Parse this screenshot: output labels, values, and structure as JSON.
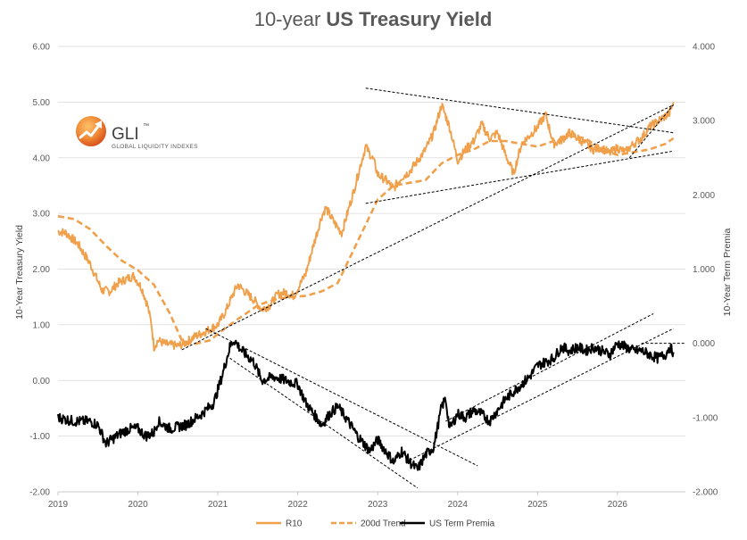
{
  "chart_data": {
    "type": "line",
    "title_light": "10-year ",
    "title_bold": "US Treasury Yield",
    "ylabel_left": "10-Year Treasury Yield",
    "ylabel_right": "10-Year Term Premia",
    "ylim_left": [
      -2,
      6
    ],
    "ylim_right": [
      -2,
      4
    ],
    "left_ticks": [
      "-2.00",
      "-1.00",
      "0.00",
      "1.00",
      "2.00",
      "3.00",
      "4.00",
      "5.00",
      "6.00"
    ],
    "left_tick_values": [
      -2,
      -1,
      0,
      1,
      2,
      3,
      4,
      5,
      6
    ],
    "right_ticks": [
      "-2.000",
      "-1.000",
      "0.000",
      "1.000",
      "2.000",
      "3.000",
      "4.000"
    ],
    "right_tick_values": [
      -2,
      -1,
      0,
      1,
      2,
      3,
      4
    ],
    "xlim": [
      2019,
      2026.85
    ],
    "x_ticks": [
      "2019",
      "2020",
      "2021",
      "2022",
      "2023",
      "2024",
      "2025",
      "2026"
    ],
    "x_tick_values": [
      2019,
      2020,
      2021,
      2022,
      2023,
      2024,
      2025,
      2026
    ],
    "grid": "horizontal",
    "legend_position": "bottom",
    "series": [
      {
        "name": "R10",
        "axis": "left",
        "color": "#F0A04B",
        "style": "solid",
        "x": [
          2019.0,
          2019.1,
          2019.25,
          2019.4,
          2019.55,
          2019.65,
          2019.75,
          2019.85,
          2019.95,
          2020.05,
          2020.12,
          2020.17,
          2020.2,
          2020.25,
          2020.35,
          2020.5,
          2020.6,
          2020.7,
          2020.8,
          2020.9,
          2021.0,
          2021.1,
          2021.2,
          2021.25,
          2021.35,
          2021.45,
          2021.55,
          2021.65,
          2021.75,
          2021.85,
          2021.95,
          2022.0,
          2022.1,
          2022.2,
          2022.3,
          2022.35,
          2022.45,
          2022.55,
          2022.6,
          2022.7,
          2022.8,
          2022.85,
          2022.95,
          2023.0,
          2023.1,
          2023.2,
          2023.3,
          2023.4,
          2023.5,
          2023.6,
          2023.7,
          2023.8,
          2023.9,
          2024.0,
          2024.1,
          2024.2,
          2024.3,
          2024.4,
          2024.5,
          2024.6,
          2024.7,
          2024.8,
          2024.9,
          2025.0,
          2025.1,
          2025.2,
          2025.3,
          2025.4,
          2025.5,
          2025.6,
          2025.7,
          2025.8,
          2025.9,
          2026.0,
          2026.1,
          2026.2,
          2026.3,
          2026.4,
          2026.5,
          2026.6,
          2026.65,
          2026.7
        ],
        "y": [
          2.68,
          2.65,
          2.45,
          2.1,
          1.62,
          1.6,
          1.75,
          1.82,
          1.88,
          1.65,
          1.35,
          1.0,
          0.6,
          0.72,
          0.65,
          0.62,
          0.68,
          0.78,
          0.85,
          0.92,
          1.0,
          1.25,
          1.58,
          1.72,
          1.58,
          1.45,
          1.28,
          1.35,
          1.55,
          1.58,
          1.52,
          1.65,
          1.92,
          2.45,
          2.95,
          3.1,
          2.85,
          2.65,
          2.9,
          3.4,
          3.95,
          4.2,
          3.95,
          3.7,
          3.6,
          3.45,
          3.65,
          3.75,
          3.95,
          4.15,
          4.45,
          4.95,
          4.55,
          3.95,
          4.15,
          4.3,
          4.6,
          4.35,
          4.45,
          4.05,
          3.72,
          4.25,
          4.4,
          4.55,
          4.78,
          4.25,
          4.32,
          4.45,
          4.35,
          4.25,
          4.15,
          4.18,
          4.08,
          4.18,
          4.1,
          4.25,
          4.35,
          4.55,
          4.65,
          4.75,
          4.8,
          5.0
        ]
      },
      {
        "name": "200d Trend",
        "axis": "left",
        "color": "#F0A04B",
        "style": "dashed",
        "x": [
          2019.0,
          2019.2,
          2019.4,
          2019.6,
          2019.8,
          2020.0,
          2020.2,
          2020.4,
          2020.55,
          2020.7,
          2020.9,
          2021.1,
          2021.3,
          2021.5,
          2021.7,
          2021.9,
          2022.1,
          2022.3,
          2022.5,
          2022.7,
          2022.9,
          2023.0,
          2023.2,
          2023.4,
          2023.6,
          2023.8,
          2024.0,
          2024.2,
          2024.4,
          2024.6,
          2024.8,
          2025.0,
          2025.2,
          2025.4,
          2025.6,
          2025.8,
          2026.0,
          2026.2,
          2026.4,
          2026.6,
          2026.7
        ],
        "y": [
          2.95,
          2.9,
          2.72,
          2.42,
          2.15,
          1.98,
          1.72,
          1.2,
          0.72,
          0.65,
          0.72,
          0.95,
          1.15,
          1.35,
          1.45,
          1.5,
          1.52,
          1.6,
          1.75,
          2.35,
          2.95,
          3.25,
          3.5,
          3.55,
          3.6,
          3.9,
          4.05,
          4.15,
          4.3,
          4.3,
          4.25,
          4.2,
          4.3,
          4.4,
          4.35,
          4.15,
          4.05,
          4.1,
          4.15,
          4.25,
          4.35
        ]
      },
      {
        "name": "US Term Premia",
        "axis": "right",
        "color": "#000000",
        "style": "solid",
        "x": [
          2019.0,
          2019.2,
          2019.4,
          2019.5,
          2019.6,
          2019.8,
          2019.9,
          2020.0,
          2020.1,
          2020.2,
          2020.25,
          2020.4,
          2020.6,
          2020.8,
          2020.95,
          2021.05,
          2021.15,
          2021.2,
          2021.3,
          2021.45,
          2021.55,
          2021.7,
          2021.85,
          2022.0,
          2022.1,
          2022.2,
          2022.3,
          2022.4,
          2022.5,
          2022.6,
          2022.75,
          2022.9,
          2023.0,
          2023.1,
          2023.2,
          2023.3,
          2023.4,
          2023.5,
          2023.6,
          2023.7,
          2023.8,
          2023.85,
          2023.9,
          2024.0,
          2024.1,
          2024.2,
          2024.3,
          2024.4,
          2024.5,
          2024.6,
          2024.7,
          2024.8,
          2024.9,
          2025.0,
          2025.1,
          2025.2,
          2025.3,
          2025.4,
          2025.5,
          2025.6,
          2025.7,
          2025.8,
          2025.9,
          2026.0,
          2026.1,
          2026.2,
          2026.3,
          2026.4,
          2026.5,
          2026.6,
          2026.65,
          2026.7
        ],
        "y": [
          -1.0,
          -1.05,
          -1.05,
          -1.1,
          -1.35,
          -1.2,
          -1.15,
          -1.15,
          -1.25,
          -1.2,
          -1.05,
          -1.15,
          -1.1,
          -0.95,
          -0.8,
          -0.45,
          -0.05,
          0.05,
          -0.1,
          -0.25,
          -0.5,
          -0.45,
          -0.5,
          -0.55,
          -0.8,
          -0.95,
          -1.1,
          -0.95,
          -0.85,
          -1.0,
          -1.25,
          -1.45,
          -1.3,
          -1.45,
          -1.6,
          -1.45,
          -1.6,
          -1.7,
          -1.5,
          -1.4,
          -0.85,
          -0.75,
          -1.15,
          -0.95,
          -1.0,
          -0.9,
          -0.95,
          -1.05,
          -0.9,
          -0.75,
          -0.65,
          -0.55,
          -0.45,
          -0.3,
          -0.25,
          -0.2,
          -0.05,
          -0.1,
          -0.05,
          -0.1,
          -0.05,
          -0.1,
          -0.15,
          0.0,
          -0.05,
          -0.1,
          -0.1,
          -0.15,
          -0.2,
          -0.15,
          -0.05,
          -0.12
        ]
      }
    ],
    "trendlines": [
      {
        "axis": "left",
        "x": [
          2022.85,
          2026.7
        ],
        "y": [
          3.18,
          4.12
        ]
      },
      {
        "axis": "left",
        "x": [
          2022.85,
          2026.7
        ],
        "y": [
          5.25,
          4.45
        ]
      },
      {
        "axis": "left",
        "x": [
          2020.55,
          2026.7
        ],
        "y": [
          0.55,
          4.95
        ]
      },
      {
        "axis": "left",
        "x": [
          2026.15,
          2026.7
        ],
        "y": [
          4.0,
          4.95
        ]
      },
      {
        "axis": "right",
        "x": [
          2020.85,
          2024.25
        ],
        "y": [
          0.2,
          -1.65
        ]
      },
      {
        "axis": "right",
        "x": [
          2021.15,
          2023.5
        ],
        "y": [
          -0.2,
          -1.95
        ]
      },
      {
        "axis": "right",
        "x": [
          2023.35,
          2026.7
        ],
        "y": [
          -1.6,
          0.2
        ]
      },
      {
        "axis": "right",
        "x": [
          2023.85,
          2026.45
        ],
        "y": [
          -1.05,
          0.4
        ]
      },
      {
        "axis": "right",
        "x": [
          2026.3,
          2026.85
        ],
        "y": [
          0.0,
          0.0
        ]
      }
    ]
  },
  "logo": {
    "name": "GLI",
    "tm": "™",
    "subtitle": "GLOBAL LIQUIDITY INDEXES",
    "gradient_light": "#F7A54A",
    "gradient_dark": "#E05A1E"
  }
}
